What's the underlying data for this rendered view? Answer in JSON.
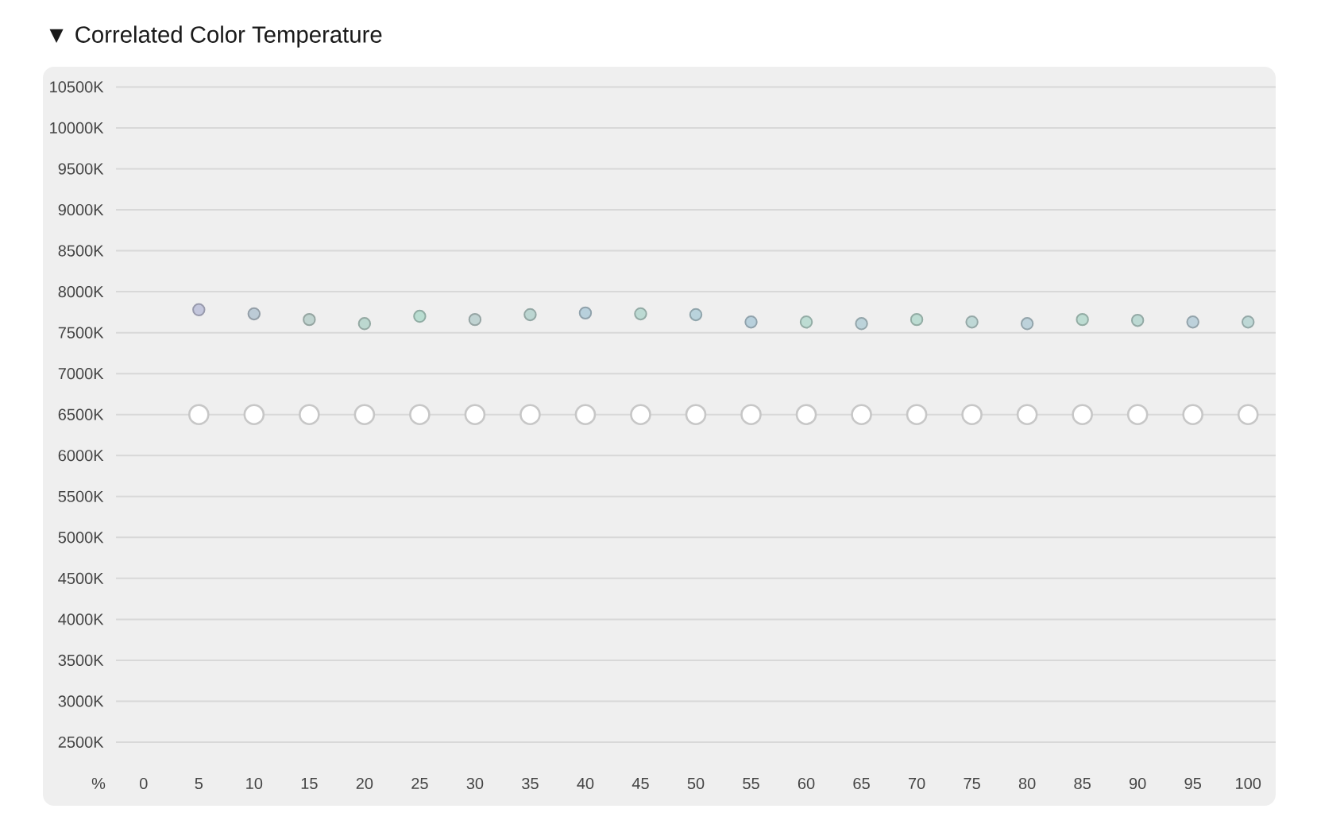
{
  "chart_data": {
    "type": "scatter",
    "title": "▼ Correlated Color Temperature",
    "xlabel": "%",
    "categories": [
      "0",
      "5",
      "10",
      "15",
      "20",
      "25",
      "30",
      "35",
      "40",
      "45",
      "50",
      "55",
      "60",
      "65",
      "70",
      "75",
      "80",
      "85",
      "90",
      "95",
      "100"
    ],
    "series": [
      {
        "colors": [
          null,
          "#c3c6dc",
          "#bccbd6",
          "#bfd3cf",
          "#bcd8d0",
          "#b9ddd1",
          "#c0d3d2",
          "#bcd6d2",
          "#b8d0dc",
          "#bcdad3",
          "#b9d3dc",
          "#b8d0dc",
          "#bddcd3",
          "#bcd3da",
          "#bcdcd2",
          "#bfd8d6",
          "#bdd2db",
          "#bddcd2",
          "#bcd9d3",
          "#bdd1db",
          "#bed8d6"
        ],
        "values": [
          null,
          7780,
          7730,
          7660,
          7610,
          7700,
          7660,
          7720,
          7740,
          7730,
          7720,
          7630,
          7630,
          7610,
          7660,
          7630,
          7610,
          7660,
          7650,
          7630,
          7630
        ]
      },
      {
        "color": "#ffffff",
        "values": [
          null,
          6500,
          6500,
          6500,
          6500,
          6500,
          6500,
          6500,
          6500,
          6500,
          6500,
          6500,
          6500,
          6500,
          6500,
          6500,
          6500,
          6500,
          6500,
          6500,
          6500
        ]
      }
    ],
    "ylim": [
      2500,
      10500
    ],
    "yticks": [
      {
        "value": 2500,
        "label": "2500K"
      },
      {
        "value": 3000,
        "label": "3000K"
      },
      {
        "value": 3500,
        "label": "3500K"
      },
      {
        "value": 4000,
        "label": "4000K"
      },
      {
        "value": 4500,
        "label": "4500K"
      },
      {
        "value": 5000,
        "label": "5000K"
      },
      {
        "value": 5500,
        "label": "5500K"
      },
      {
        "value": 6000,
        "label": "6000K"
      },
      {
        "value": 6500,
        "label": "6500K"
      },
      {
        "value": 7000,
        "label": "7000K"
      },
      {
        "value": 7500,
        "label": "7500K"
      },
      {
        "value": 8000,
        "label": "8000K"
      },
      {
        "value": 8500,
        "label": "8500K"
      },
      {
        "value": 9000,
        "label": "9000K"
      },
      {
        "value": 9500,
        "label": "9500K"
      },
      {
        "value": 10000,
        "label": "10000K"
      },
      {
        "value": 10500,
        "label": "10500K"
      }
    ],
    "grid": "y",
    "marker": "circle"
  }
}
